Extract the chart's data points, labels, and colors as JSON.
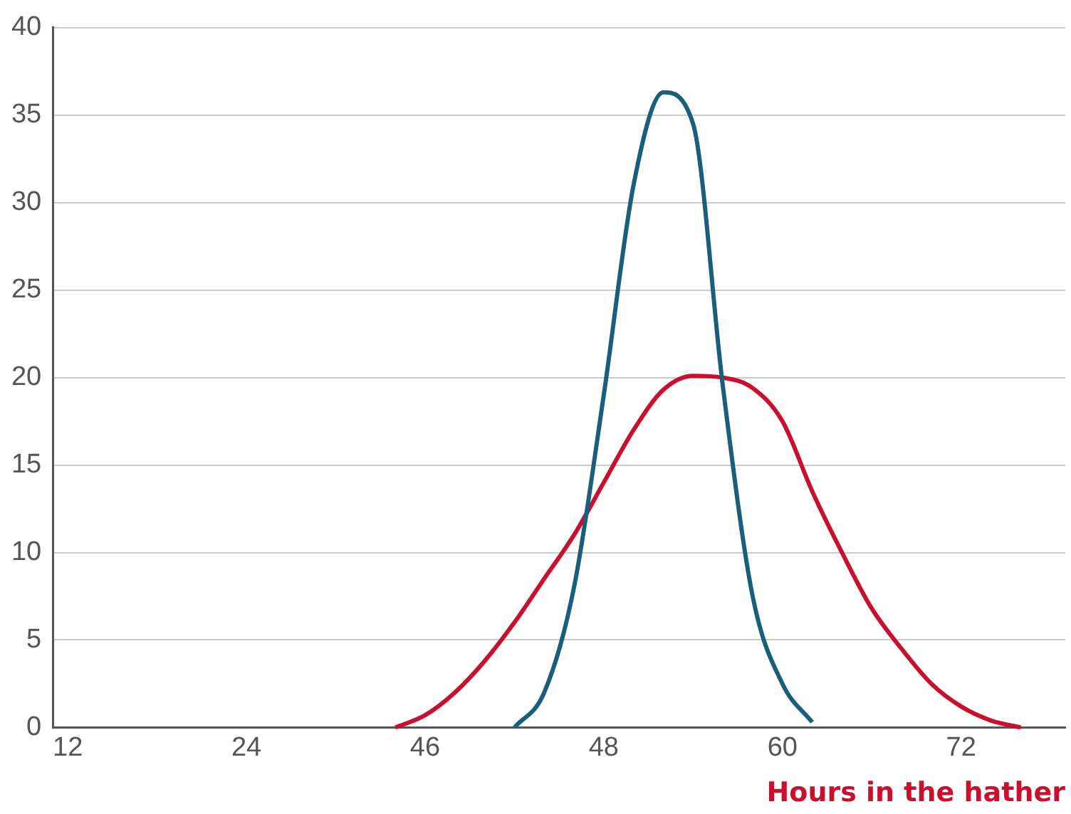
{
  "chart_data": {
    "type": "line",
    "xlabel": "Hours in the hather",
    "categories": [
      "12",
      null,
      null,
      null,
      null,
      null,
      "24",
      null,
      null,
      null,
      null,
      null,
      "46",
      null,
      null,
      null,
      null,
      null,
      "48",
      null,
      null,
      null,
      null,
      null,
      "60",
      null,
      null,
      null,
      null,
      null,
      "72",
      null,
      null,
      null
    ],
    "ylim": [
      0,
      40
    ],
    "yticks": [
      0,
      5,
      10,
      15,
      20,
      25,
      30,
      35,
      40
    ],
    "grid": "y",
    "legend": false,
    "marker": "none",
    "line_style": "solid",
    "series": [
      {
        "color": "#1a5f7a",
        "values": [
          null,
          null,
          null,
          null,
          null,
          null,
          null,
          null,
          null,
          null,
          null,
          null,
          null,
          null,
          null,
          0,
          2,
          8,
          19,
          31,
          36.3,
          34.5,
          19.5,
          7.5,
          2.5,
          0.3,
          null,
          null,
          null,
          null,
          null,
          null,
          null,
          null
        ]
      },
      {
        "color": "#c8102e",
        "values": [
          null,
          null,
          null,
          null,
          null,
          null,
          null,
          null,
          null,
          null,
          null,
          0,
          0.7,
          2,
          3.8,
          6,
          8.5,
          11,
          14,
          17,
          19.3,
          20.1,
          20,
          19.4,
          17.5,
          13.5,
          10,
          6.8,
          4.5,
          2.5,
          1.2,
          0.4,
          0,
          null
        ]
      }
    ]
  }
}
